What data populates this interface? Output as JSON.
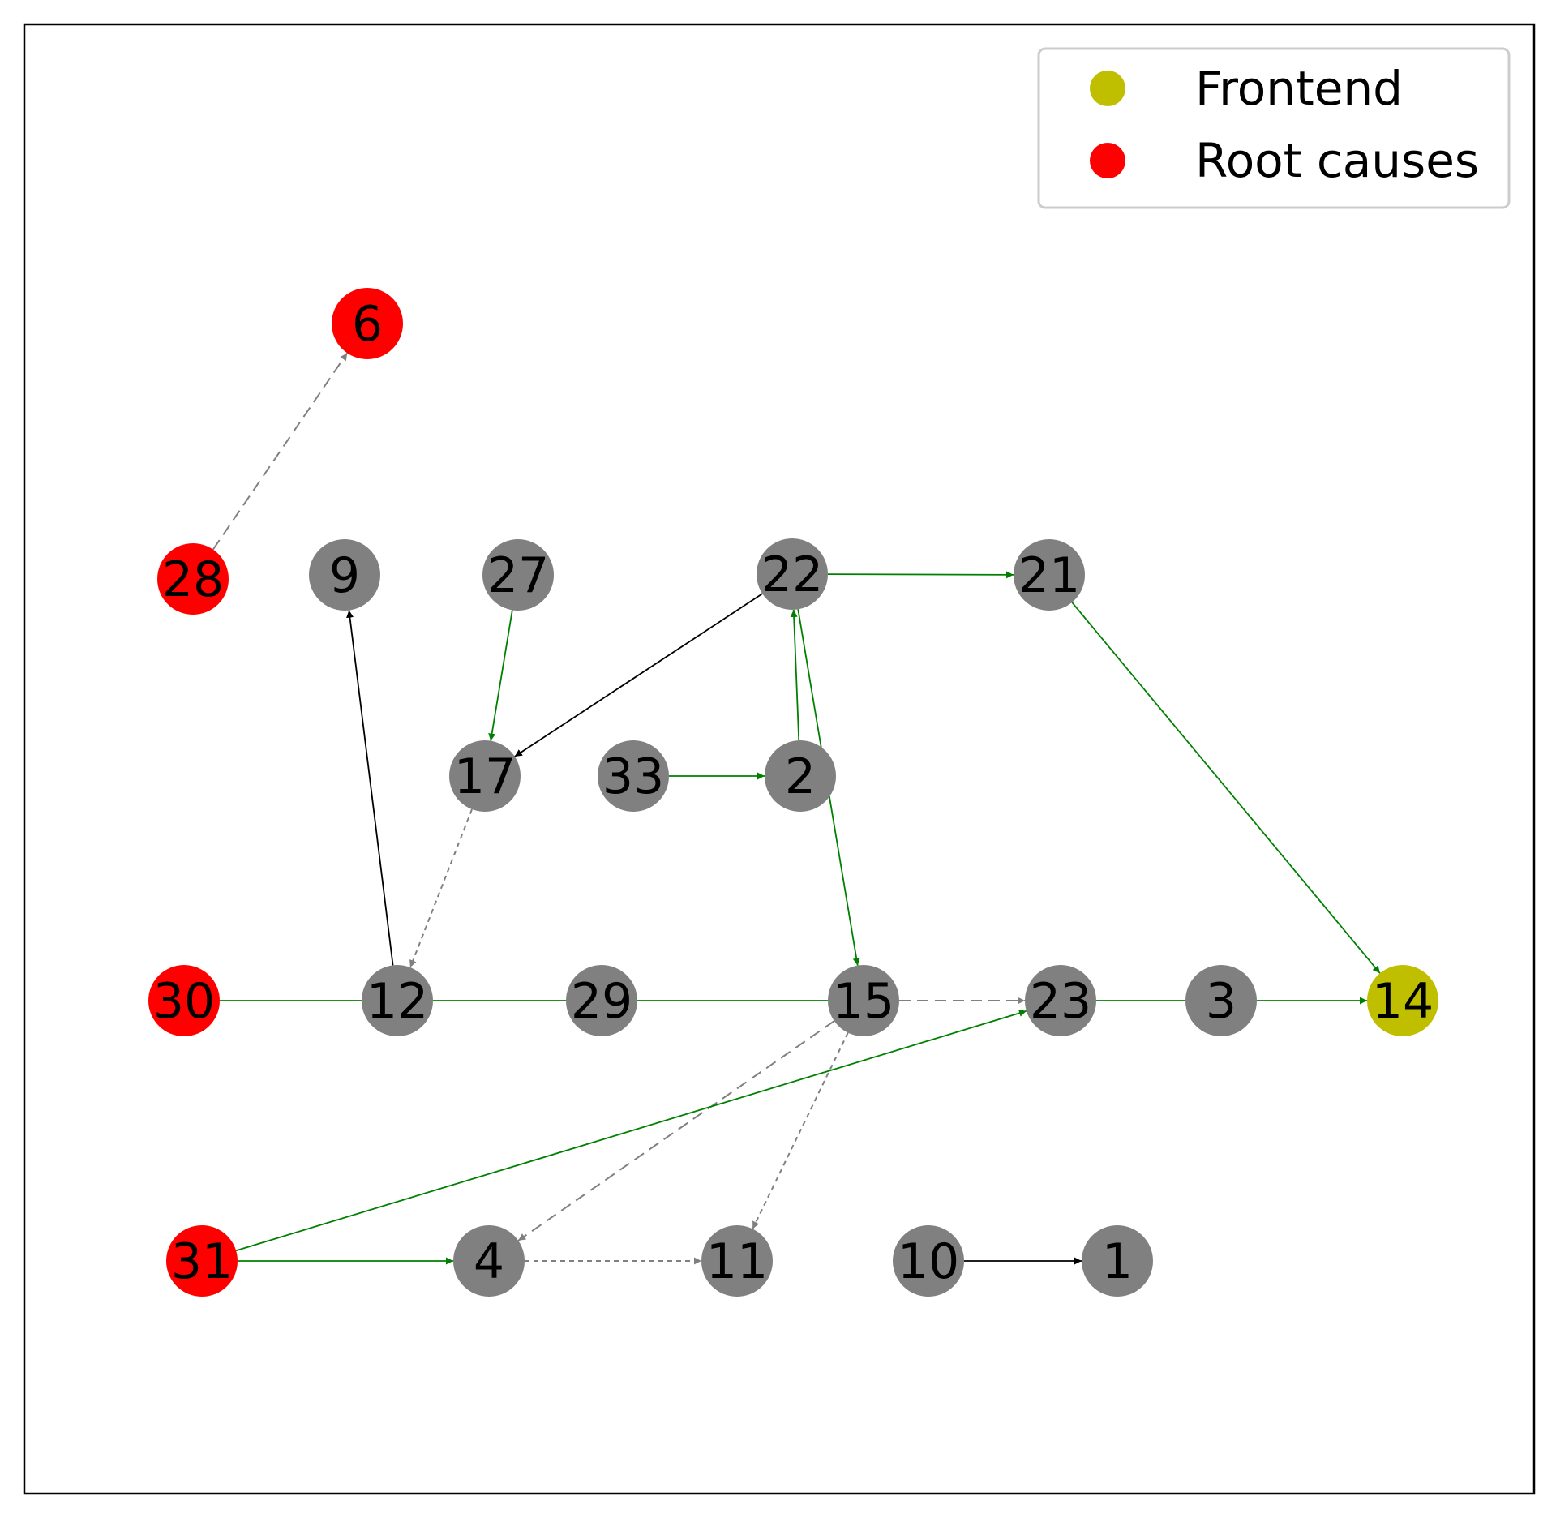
{
  "legend": {
    "items": [
      {
        "label": "Frontend",
        "color": "#bfbf00"
      },
      {
        "label": "Root causes",
        "color": "#ff0000"
      }
    ]
  },
  "node_colors": {
    "frontend": "#bfbf00",
    "root": "#ff0000",
    "normal": "#808080"
  },
  "edge_colors": {
    "green": "#008000",
    "black": "#000000",
    "gray": "#808080"
  },
  "nodes": [
    {
      "id": "6",
      "type": "root"
    },
    {
      "id": "28",
      "type": "root"
    },
    {
      "id": "9",
      "type": "normal"
    },
    {
      "id": "27",
      "type": "normal"
    },
    {
      "id": "22",
      "type": "normal"
    },
    {
      "id": "21",
      "type": "normal"
    },
    {
      "id": "17",
      "type": "normal"
    },
    {
      "id": "33",
      "type": "normal"
    },
    {
      "id": "2",
      "type": "normal"
    },
    {
      "id": "30",
      "type": "root"
    },
    {
      "id": "12",
      "type": "normal"
    },
    {
      "id": "29",
      "type": "normal"
    },
    {
      "id": "15",
      "type": "normal"
    },
    {
      "id": "23",
      "type": "normal"
    },
    {
      "id": "3",
      "type": "normal"
    },
    {
      "id": "14",
      "type": "frontend"
    },
    {
      "id": "31",
      "type": "root"
    },
    {
      "id": "4",
      "type": "normal"
    },
    {
      "id": "11",
      "type": "normal"
    },
    {
      "id": "10",
      "type": "normal"
    },
    {
      "id": "1",
      "type": "normal"
    }
  ],
  "edges": [
    {
      "from": "28",
      "to": "6",
      "color": "gray",
      "style": "dashed",
      "arrow": true
    },
    {
      "from": "27",
      "to": "17",
      "color": "green",
      "style": "solid",
      "arrow": true
    },
    {
      "from": "22",
      "to": "21",
      "color": "green",
      "style": "solid",
      "arrow": true
    },
    {
      "from": "22",
      "to": "17",
      "color": "black",
      "style": "solid",
      "arrow": true
    },
    {
      "from": "2",
      "to": "22",
      "color": "green",
      "style": "solid",
      "arrow": true
    },
    {
      "from": "22",
      "to": "15",
      "color": "green",
      "style": "solid",
      "arrow": true
    },
    {
      "from": "21",
      "to": "14",
      "color": "green",
      "style": "solid",
      "arrow": true
    },
    {
      "from": "33",
      "to": "2",
      "color": "green",
      "style": "solid",
      "arrow": true
    },
    {
      "from": "12",
      "to": "9",
      "color": "black",
      "style": "solid",
      "arrow": true
    },
    {
      "from": "17",
      "to": "12",
      "color": "gray",
      "style": "dotted",
      "arrow": true
    },
    {
      "from": "30",
      "to": "12",
      "color": "green",
      "style": "solid",
      "arrow": false
    },
    {
      "from": "12",
      "to": "29",
      "color": "green",
      "style": "solid",
      "arrow": false
    },
    {
      "from": "29",
      "to": "15",
      "color": "green",
      "style": "solid",
      "arrow": false
    },
    {
      "from": "15",
      "to": "23",
      "color": "gray",
      "style": "dashed",
      "arrow": true
    },
    {
      "from": "23",
      "to": "3",
      "color": "green",
      "style": "solid",
      "arrow": false
    },
    {
      "from": "3",
      "to": "14",
      "color": "green",
      "style": "solid",
      "arrow": true
    },
    {
      "from": "15",
      "to": "4",
      "color": "gray",
      "style": "dashed",
      "arrow": true
    },
    {
      "from": "15",
      "to": "11",
      "color": "gray",
      "style": "dotted",
      "arrow": true
    },
    {
      "from": "31",
      "to": "23",
      "color": "green",
      "style": "solid",
      "arrow": true
    },
    {
      "from": "31",
      "to": "4",
      "color": "green",
      "style": "solid",
      "arrow": true
    },
    {
      "from": "4",
      "to": "11",
      "color": "gray",
      "style": "dotted",
      "arrow": true
    },
    {
      "from": "10",
      "to": "1",
      "color": "black",
      "style": "solid",
      "arrow": true
    }
  ]
}
